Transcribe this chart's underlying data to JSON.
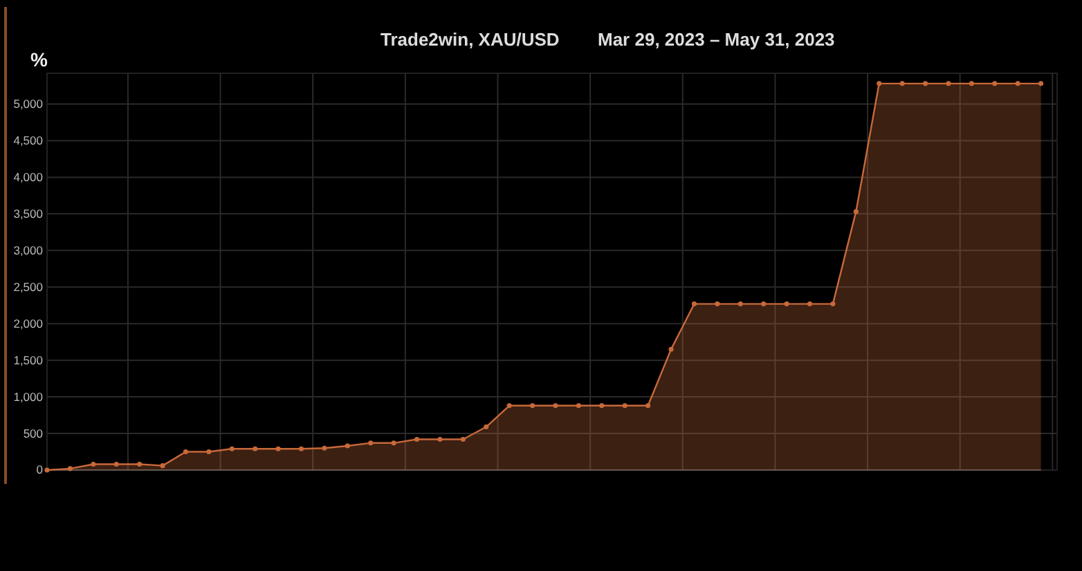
{
  "chart_data": {
    "type": "area",
    "title": "Trade2win, XAU/USD",
    "subtitle": "Mar 29, 2023 – May 31, 2023",
    "ylabel": "%",
    "categories": [
      null,
      null,
      null,
      null,
      null,
      null,
      null,
      null,
      null,
      null,
      null,
      null,
      null,
      null,
      null,
      null,
      null,
      null,
      null,
      null,
      null,
      null,
      null,
      null,
      null,
      null,
      null,
      null,
      null,
      null,
      null,
      null,
      null,
      null,
      null,
      null,
      null,
      null,
      null,
      null,
      null,
      null,
      null,
      null
    ],
    "ylim": [
      0,
      5420
    ],
    "yticks": [
      {
        "value": 0,
        "label": "0"
      },
      {
        "value": 500,
        "label": "500"
      },
      {
        "value": 1000,
        "label": "1,000"
      },
      {
        "value": 1500,
        "label": "1,500"
      },
      {
        "value": 2000,
        "label": "2,000"
      },
      {
        "value": 2500,
        "label": "2,500"
      },
      {
        "value": 3000,
        "label": "3,000"
      },
      {
        "value": 3500,
        "label": "3,500"
      },
      {
        "value": 4000,
        "label": "4,000"
      },
      {
        "value": 4500,
        "label": "4,500"
      },
      {
        "value": 5000,
        "label": "5,000"
      }
    ],
    "series": [
      {
        "color": "#c8693a",
        "values": [
          0,
          20,
          80,
          80,
          80,
          60,
          250,
          250,
          290,
          290,
          290,
          290,
          300,
          330,
          370,
          370,
          420,
          420,
          420,
          590,
          880,
          880,
          880,
          880,
          880,
          880,
          880,
          1650,
          2270,
          2270,
          2270,
          2270,
          2270,
          2270,
          2270,
          3530,
          5280,
          5280,
          5280,
          5280,
          5280,
          5280,
          5280,
          5280
        ]
      }
    ],
    "grid": true,
    "marker": "circle"
  }
}
